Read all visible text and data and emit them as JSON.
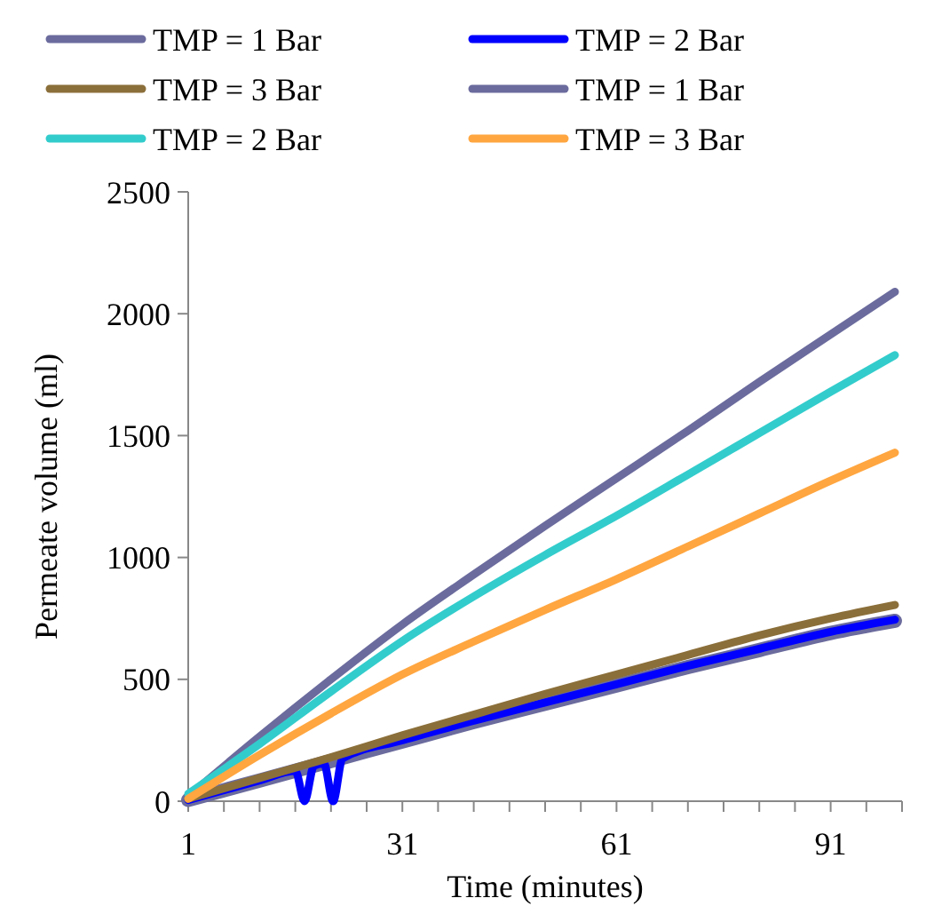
{
  "chart_data": {
    "type": "line",
    "xlabel": "Time (minutes)",
    "ylabel": "Permeate volume (ml)",
    "xlim": [
      1,
      101
    ],
    "ylim": [
      0,
      2500
    ],
    "xticks": [
      1,
      {
        "value": 6,
        "label": null
      },
      {
        "value": 11,
        "label": null
      },
      {
        "value": 16,
        "label": null
      },
      {
        "value": 21,
        "label": null
      },
      {
        "value": 26,
        "label": null
      },
      31,
      {
        "value": 36,
        "label": null
      },
      {
        "value": 41,
        "label": null
      },
      {
        "value": 46,
        "label": null
      },
      {
        "value": 51,
        "label": null
      },
      {
        "value": 56,
        "label": null
      },
      61,
      {
        "value": 66,
        "label": null
      },
      {
        "value": 71,
        "label": null
      },
      {
        "value": 76,
        "label": null
      },
      {
        "value": 81,
        "label": null
      },
      {
        "value": 86,
        "label": null
      },
      91,
      {
        "value": 96,
        "label": null
      },
      {
        "value": 101,
        "label": null
      }
    ],
    "yticks": [
      0,
      500,
      1000,
      1500,
      2000,
      2500
    ],
    "grid": false,
    "legend": "top",
    "marker": "none",
    "line_style": "solid",
    "series": [
      {
        "name": "TMP = 1 Bar",
        "color": "#6b6b9e",
        "x": [
          1,
          11,
          21,
          31,
          41,
          51,
          61,
          71,
          81,
          91,
          100
        ],
        "values": [
          5,
          85,
          165,
          245,
          325,
          400,
          475,
          550,
          620,
          690,
          740
        ]
      },
      {
        "name": "TMP = 2 Bar",
        "color": "#0000ff",
        "x": [
          1,
          11,
          16,
          17.3,
          18.6,
          20,
          21.3,
          22.6,
          31,
          41,
          51,
          61,
          71,
          81,
          91,
          100
        ],
        "values": [
          5,
          85,
          125,
          0,
          145,
          155,
          0,
          175,
          250,
          330,
          405,
          480,
          555,
          625,
          695,
          745
        ]
      },
      {
        "name": "TMP = 3 Bar",
        "color": "#8b6f3a",
        "x": [
          1,
          11,
          21,
          31,
          41,
          51,
          61,
          71,
          81,
          91,
          100
        ],
        "values": [
          10,
          95,
          180,
          270,
          355,
          440,
          520,
          600,
          680,
          750,
          805
        ]
      },
      {
        "name": "TMP = 1 Bar",
        "color": "#6b6b9e",
        "x": [
          1,
          11,
          21,
          31,
          41,
          51,
          61,
          71,
          81,
          91,
          100
        ],
        "values": [
          20,
          265,
          500,
          725,
          930,
          1130,
          1325,
          1520,
          1720,
          1915,
          2090
        ]
      },
      {
        "name": "TMP = 2 Bar",
        "color": "#33cccc",
        "x": [
          1,
          11,
          21,
          31,
          41,
          51,
          61,
          71,
          81,
          91,
          100
        ],
        "values": [
          30,
          235,
          450,
          657,
          840,
          1010,
          1171,
          1340,
          1510,
          1680,
          1830
        ]
      },
      {
        "name": "TMP = 3 Bar",
        "color": "#ffa640",
        "x": [
          1,
          11,
          21,
          31,
          41,
          51,
          61,
          71,
          81,
          91,
          100
        ],
        "values": [
          10,
          190,
          360,
          520,
          655,
          785,
          911,
          1045,
          1180,
          1315,
          1430
        ]
      }
    ]
  }
}
